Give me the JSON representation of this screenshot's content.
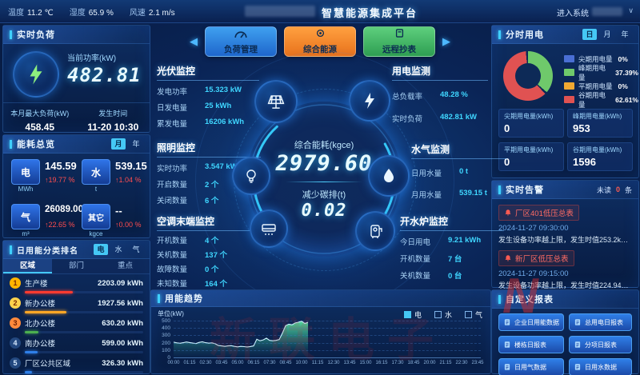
{
  "topbar": {
    "weather": [
      {
        "label": "温度",
        "value": "11.2 ℃"
      },
      {
        "label": "湿度",
        "value": "65.9 %"
      },
      {
        "label": "风速",
        "value": "2.1 m/s"
      }
    ],
    "title": "智慧能源集成平台",
    "enter_system": "进入系统",
    "caret": "∨"
  },
  "realtime_load": {
    "title": "实时负荷",
    "current_power_label": "当前功率(kW)",
    "current_power_value": "482.81",
    "max_load_label": "本月最大负荷(kW)",
    "max_load_value": "458.45",
    "occur_time_label": "发生时间",
    "occur_time_value": "11-20 10:30"
  },
  "energy_overview": {
    "title": "能耗总览",
    "toggle_month": "月",
    "toggle_year": "年",
    "items": [
      {
        "type": "电",
        "unit": "MWh",
        "value": "145.59",
        "trend": "↑19.77 %"
      },
      {
        "type": "水",
        "unit": "t",
        "value": "539.15",
        "trend": "↑1.04 %"
      },
      {
        "type": "气",
        "unit": "m³",
        "value": "26089.00",
        "trend": "↑22.65 %"
      },
      {
        "type": "其它",
        "unit": "kgce",
        "value": "--",
        "trend": "↑0.00 %"
      }
    ]
  },
  "ranking": {
    "title": "日用能分类排名",
    "toggles": [
      "电",
      "水",
      "气"
    ],
    "tabs": [
      "区域",
      "部门",
      "重点"
    ],
    "items": [
      {
        "rank": "1",
        "name": "生产楼",
        "value": "2203.09 kWh",
        "num": 2203.09,
        "bar_color": "#ff3b30",
        "medal_bg": "#ffb400",
        "medal_text": "#7a2b00"
      },
      {
        "rank": "2",
        "name": "新办公楼",
        "value": "1927.56 kWh",
        "num": 1927.56,
        "bar_color": "#ffa726",
        "medal_bg": "#ffd24d",
        "medal_text": "#7a2b00"
      },
      {
        "rank": "3",
        "name": "北办公楼",
        "value": "630.20 kWh",
        "num": 630.2,
        "bar_color": "#4caf50",
        "medal_bg": "#ff8a3c",
        "medal_text": "#6e1f00"
      },
      {
        "rank": "4",
        "name": "南办公楼",
        "value": "599.00 kWh",
        "num": 599.0,
        "bar_color": "#2f7fe8",
        "medal_bg": "#23487f",
        "medal_text": "#d6e9ff"
      },
      {
        "rank": "5",
        "name": "厂区公共区域",
        "value": "326.30 kWh",
        "num": 326.3,
        "bar_color": "#2f7fe8",
        "medal_bg": "#23487f",
        "medal_text": "#d6e9ff"
      }
    ]
  },
  "nav": {
    "prev": "◀",
    "next": "▶",
    "buttons": [
      {
        "label": "负荷管理",
        "c1": "#3fa0f0",
        "c2": "#1e66cc"
      },
      {
        "label": "综合能源",
        "c1": "#ffa040",
        "c2": "#e8721c"
      },
      {
        "label": "远程抄表",
        "c1": "#5ecf7d",
        "c2": "#2e9e52"
      }
    ]
  },
  "pv": {
    "title": "光伏监控",
    "rows": [
      [
        "发电功率",
        "15.323 kW"
      ],
      [
        "日发电量",
        "25 kWh"
      ],
      [
        "累发电量",
        "16206 kWh"
      ]
    ]
  },
  "elec": {
    "title": "用电监测",
    "rows": [
      [
        "总负载率",
        "48.28 %"
      ],
      [
        "实时负荷",
        "482.81 kW"
      ]
    ]
  },
  "lighting": {
    "title": "照明监控",
    "rows": [
      [
        "实时功率",
        "3.547 kW"
      ],
      [
        "开启数量",
        "2 个"
      ],
      [
        "关闭数量",
        "6 个"
      ]
    ]
  },
  "watergas": {
    "title": "水气监测",
    "rows": [
      [
        "日用水量",
        "0 t"
      ],
      [
        "月用水量",
        "539.15 t"
      ]
    ]
  },
  "ac": {
    "title": "空调末端监控",
    "rows": [
      [
        "开机数量",
        "4 个"
      ],
      [
        "关机数量",
        "137 个"
      ],
      [
        "故障数量",
        "0 个"
      ],
      [
        "未知数量",
        "164 个"
      ]
    ]
  },
  "boiler": {
    "title": "开水炉监控",
    "rows": [
      [
        "今日用电",
        "9.21 kWh"
      ],
      [
        "开机数量",
        "7 台"
      ],
      [
        "关机数量",
        "0 台"
      ]
    ]
  },
  "center": {
    "energy_label": "综合能耗(kgce)",
    "energy_value": "2979.60",
    "carbon_label": "减少碳排(t)",
    "carbon_value": "0.02"
  },
  "tou": {
    "title": "分时用电",
    "toggles": [
      "日",
      "月",
      "年"
    ],
    "legend": [
      {
        "label": "尖期用电量",
        "pct": "0%",
        "value_num": 0,
        "color": "#4a6fd4"
      },
      {
        "label": "峰期用电量",
        "pct": "37.39%",
        "value_num": 37.39,
        "color": "#6fc96b"
      },
      {
        "label": "平期用电量",
        "pct": "0%",
        "value_num": 0,
        "color": "#f0a832"
      },
      {
        "label": "谷期用电量",
        "pct": "62.61%",
        "value_num": 62.61,
        "color": "#e05252"
      }
    ],
    "cells": [
      {
        "label": "尖期用电量(kWh)",
        "value": "0"
      },
      {
        "label": "峰期用电量(kWh)",
        "value": "953"
      },
      {
        "label": "平期用电量(kWh)",
        "value": "0"
      },
      {
        "label": "谷期用电量(kWh)",
        "value": "1596"
      }
    ]
  },
  "alerts": {
    "title": "实时告警",
    "unread_prefix": "未读",
    "unread_count": "0",
    "unread_suffix": "条",
    "items": [
      {
        "name": "厂区401低压总表",
        "time": "2024-11-27 09:30:00",
        "desc": "发生设备功率越上限，发生时值253.2kW，..."
      },
      {
        "name": "新厂区低压总表",
        "time": "2024-11-27 09:15:00",
        "desc": "发生设备功率越上限，发生时值224.94kW..."
      }
    ]
  },
  "reports": {
    "title": "自定义报表",
    "buttons": [
      "企业日用能数据",
      "总用电日报表",
      "楼栋日报表",
      "分项日报表",
      "日用气数据",
      "日用水数据"
    ]
  },
  "watermark": "新联电子",
  "watermark_n": "N",
  "chart_data": {
    "type": "area",
    "title": "用能趋势",
    "ylabel": "单位(kW)",
    "ylim": [
      0,
      500
    ],
    "yticks": [
      0,
      100,
      200,
      300,
      400,
      500
    ],
    "xticks": [
      "00:00",
      "01:15",
      "02:30",
      "03:45",
      "05:00",
      "06:15",
      "07:30",
      "08:45",
      "10:00",
      "11:15",
      "12:30",
      "13:45",
      "15:00",
      "16:15",
      "17:30",
      "18:45",
      "20:00",
      "21:15",
      "22:30",
      "23:45"
    ],
    "x_total_minutes": 1440,
    "legend": [
      {
        "label": "电",
        "checked": true
      },
      {
        "label": "水",
        "checked": false
      },
      {
        "label": "气",
        "checked": false
      }
    ],
    "series": [
      {
        "name": "电",
        "interval_minutes": 15,
        "values": [
          208,
          198,
          192,
          200,
          210,
          202,
          195,
          188,
          204,
          212,
          200,
          194,
          198,
          186,
          162,
          156,
          150,
          156,
          160,
          150,
          144,
          150,
          147,
          142,
          148,
          156,
          248,
          226,
          238,
          262,
          232,
          226,
          232,
          242,
          330,
          432,
          452,
          444,
          468,
          478,
          492,
          462,
          476
        ]
      }
    ]
  }
}
